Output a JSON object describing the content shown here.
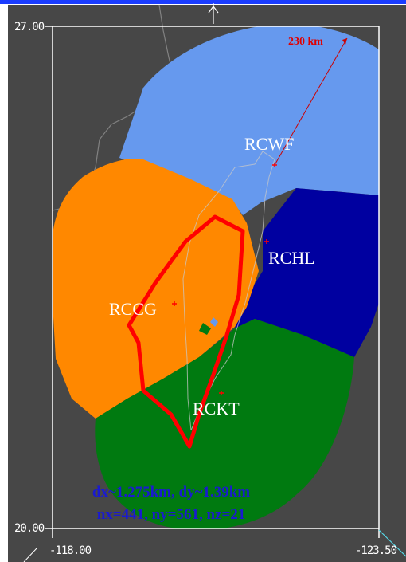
{
  "axes": {
    "y_top": "27.00",
    "y_bottom": "20.00",
    "x_left": "-118.00",
    "x_right": "-123.50"
  },
  "range_label": "230 km",
  "radars": [
    {
      "id": "RCWF",
      "label": "RCWF",
      "color": "#6699ee"
    },
    {
      "id": "RCHL",
      "label": "RCHL",
      "color": "#0000a0"
    },
    {
      "id": "RCCG",
      "label": "RCCG",
      "color": "#ff8800"
    },
    {
      "id": "RCKT",
      "label": "RCKT",
      "color": "#007a10"
    }
  ],
  "grid_info": {
    "line1": "dx~1.275km, dy~1.39km",
    "line2": "nx=441, ny=561, nz=21"
  },
  "colors": {
    "background": "#474747",
    "frame": "#ffffff",
    "outline": "#ff0000",
    "coastline": "#c8c8c8",
    "range_line": "#cc0000",
    "top_bar": "#1a3cff"
  }
}
